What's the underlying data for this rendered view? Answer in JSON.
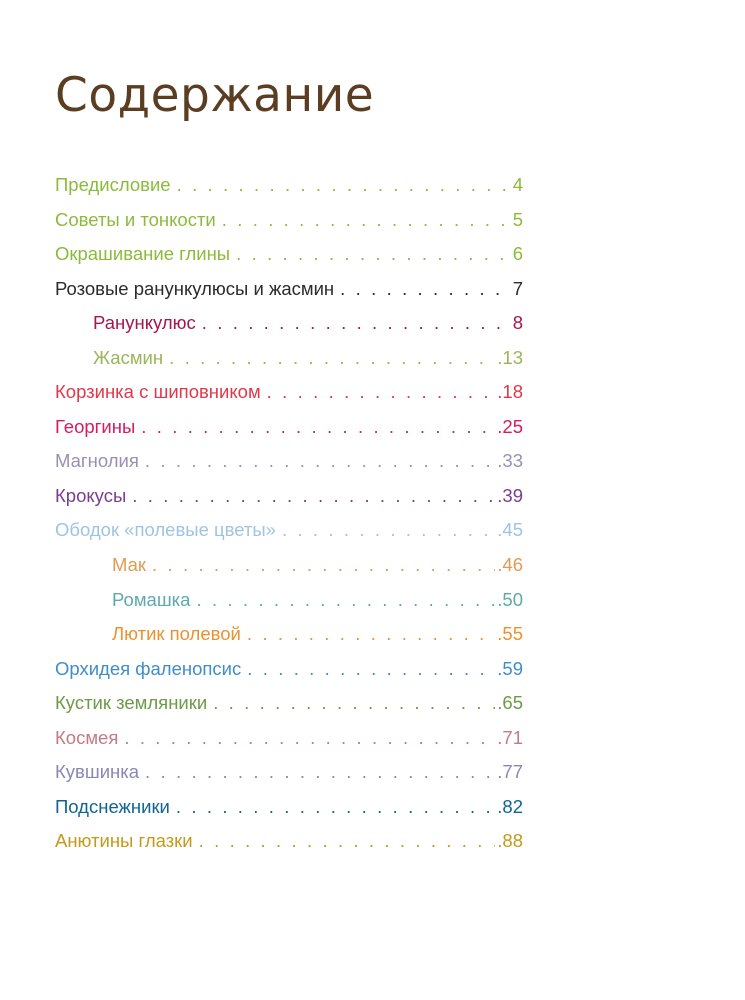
{
  "title": "Содержание",
  "colors": {
    "title": "#5b3d22"
  },
  "toc": [
    {
      "title": "Предисловие",
      "page": "4",
      "level": 0,
      "color": "#8cbb3b"
    },
    {
      "title": "Советы и тонкости",
      "page": "5",
      "level": 0,
      "color": "#8cbb3b"
    },
    {
      "title": "Окрашивание глины",
      "page": "6",
      "level": 0,
      "color": "#8cbb3b"
    },
    {
      "title": "Розовые ранункулюсы и жасмин",
      "page": "7",
      "level": 0,
      "color": "#2b2b2b"
    },
    {
      "title": "Ранункулюс",
      "page": "8",
      "level": 1,
      "color": "#a6164e"
    },
    {
      "title": "Жасмин",
      "page": ".13",
      "level": 1,
      "color": "#9cb45a"
    },
    {
      "title": "Корзинка с шиповником",
      "page": ".18",
      "level": 0,
      "color": "#e0384a"
    },
    {
      "title": "Георгины",
      "page": ".25",
      "level": 0,
      "color": "#d81a5e"
    },
    {
      "title": "Магнолия",
      "page": ".33",
      "level": 0,
      "color": "#9a90b6"
    },
    {
      "title": "Крокусы",
      "page": ".39",
      "level": 0,
      "color": "#7a3d8f"
    },
    {
      "title": "Ободок «полевые цветы»",
      "page": ".45",
      "level": 0,
      "color": "#9fc4e2"
    },
    {
      "title": "Мак",
      "page": ".46",
      "level": 2,
      "color": "#e09b54"
    },
    {
      "title": "Ромашка",
      "page": ".50",
      "level": 2,
      "color": "#5fa9ad"
    },
    {
      "title": "Лютик полевой",
      "page": ".55",
      "level": 2,
      "color": "#ec9132"
    },
    {
      "title": "Орхидея фаленопсис",
      "page": ".59",
      "level": 0,
      "color": "#3f8dc9"
    },
    {
      "title": "Кустик земляники",
      "page": ".65",
      "level": 0,
      "color": "#6d9a47"
    },
    {
      "title": "Космея",
      "page": ".71",
      "level": 0,
      "color": "#c47a86"
    },
    {
      "title": "Кувшинка",
      "page": ".77",
      "level": 0,
      "color": "#8a86b8"
    },
    {
      "title": "Подснежники",
      "page": ".82",
      "level": 0,
      "color": "#0f6591"
    },
    {
      "title": "Анютины глазки",
      "page": ".88",
      "level": 0,
      "color": "#c39a1b"
    }
  ]
}
